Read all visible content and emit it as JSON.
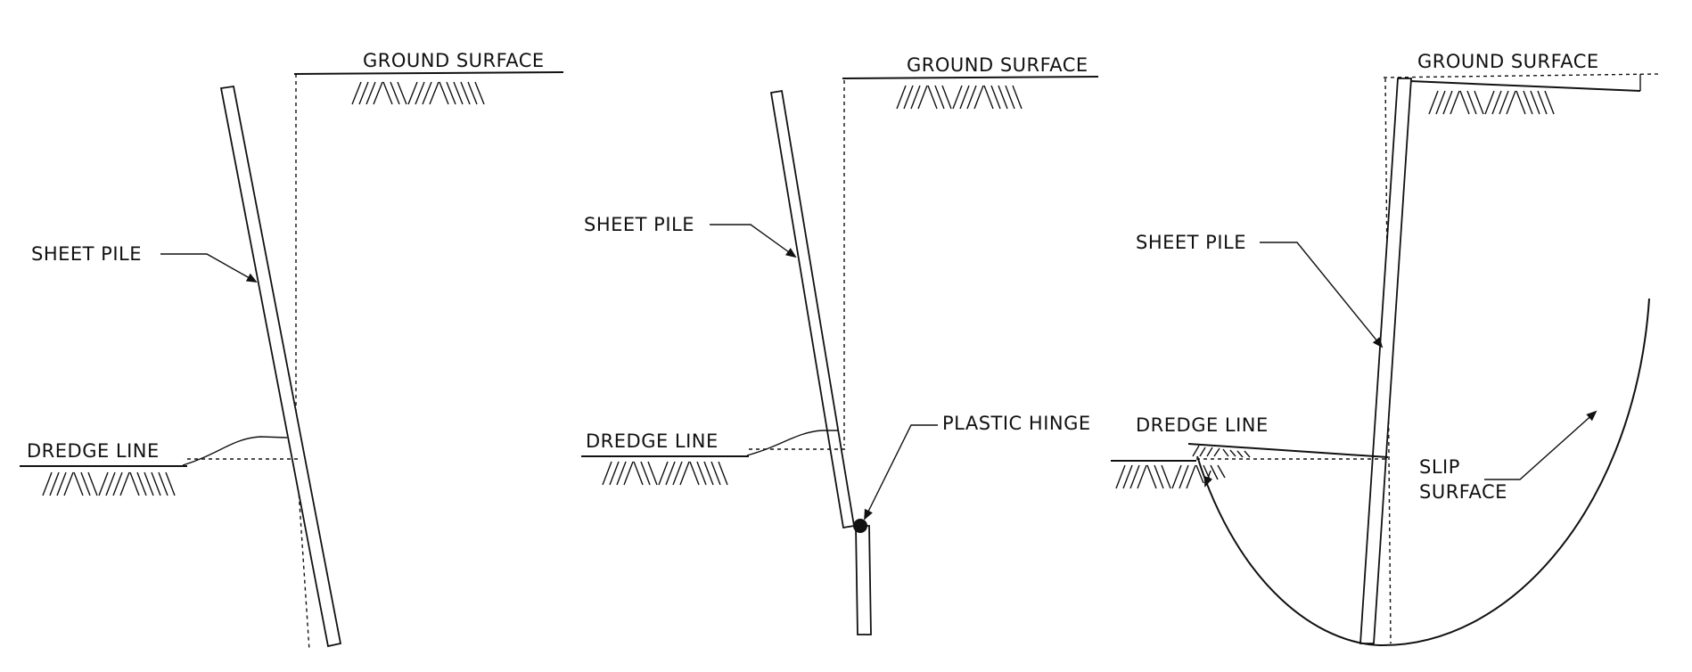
{
  "panels": [
    {
      "id": "rotation",
      "ground_label": "GROUND SURFACE",
      "pile_label": "SHEET PILE",
      "dredge_label": "DREDGE LINE"
    },
    {
      "id": "plastic-hinge",
      "ground_label": "GROUND SURFACE",
      "pile_label": "SHEET PILE",
      "dredge_label": "DREDGE LINE",
      "hinge_label": "PLASTIC HINGE"
    },
    {
      "id": "deep-seated",
      "ground_label": "GROUND SURFACE",
      "pile_label": "SHEET PILE",
      "dredge_label": "DREDGE LINE",
      "slip_label_line1": "SLIP",
      "slip_label_line2": "SURFACE"
    }
  ],
  "colors": {
    "ink": "#111111",
    "background": "#ffffff"
  }
}
